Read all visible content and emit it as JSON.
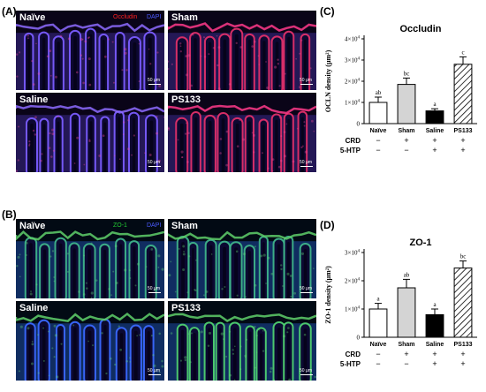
{
  "figure": {
    "panels": {
      "A": {
        "label": "(A)"
      },
      "B": {
        "label": "(B)"
      },
      "C": {
        "label": "(C)"
      },
      "D": {
        "label": "(D)"
      }
    },
    "micrographs_A": {
      "stain1": "Occludin",
      "stain2": "DAPI",
      "stain1_color": "#ff2020",
      "stain2_color": "#4b5bff",
      "images": [
        {
          "title": "Naïve",
          "scale": "50 μm"
        },
        {
          "title": "Sham",
          "scale": "50 μm"
        },
        {
          "title": "Saline",
          "scale": "50 μm"
        },
        {
          "title": "PS133",
          "scale": "50 μm"
        }
      ]
    },
    "micrographs_B": {
      "stain1": "ZO-1",
      "stain2": "DAPI",
      "stain1_color": "#22cc33",
      "stain2_color": "#4b5bff",
      "images": [
        {
          "title": "Naïve",
          "scale": "50 μm"
        },
        {
          "title": "Sham",
          "scale": "50 μm"
        },
        {
          "title": "Saline",
          "scale": "50 μm"
        },
        {
          "title": "PS133",
          "scale": "50 μm"
        }
      ]
    },
    "treatment_rows": {
      "row1": "CRD",
      "row2": "5-HTP",
      "crd": [
        "−",
        "+",
        "+",
        "+"
      ],
      "htp": [
        "−",
        "−",
        "+",
        "+"
      ]
    }
  },
  "chart_data": [
    {
      "type": "bar",
      "title": "Occludin",
      "ylabel": "OCLN density (μm²)",
      "categories": [
        "Naïve",
        "Sham",
        "Saline",
        "PS133"
      ],
      "values": [
        10000,
        18500,
        6000,
        28000
      ],
      "errors": [
        2500,
        3000,
        1000,
        3500
      ],
      "letters": [
        "ab",
        "bc",
        "a",
        "c"
      ],
      "fills": [
        "white",
        "lightgray",
        "black",
        "hatched"
      ],
      "ylim": [
        0,
        40000
      ],
      "ytick_mantissas": [
        "0",
        "1×10",
        "2×10",
        "3×10",
        "4×10"
      ],
      "ytick_exponents": [
        "",
        "4",
        "4",
        "4",
        "4"
      ],
      "ytick_values": [
        0,
        10000,
        20000,
        30000,
        40000
      ]
    },
    {
      "type": "bar",
      "title": "ZO-1",
      "ylabel": "ZO-1 density (μm²)",
      "categories": [
        "Naïve",
        "Sham",
        "Saline",
        "PS133"
      ],
      "values": [
        10000,
        17500,
        8000,
        24500
      ],
      "errors": [
        2000,
        3000,
        2000,
        2500
      ],
      "letters": [
        "a",
        "ab",
        "a",
        "bc"
      ],
      "fills": [
        "white",
        "lightgray",
        "black",
        "hatched"
      ],
      "ylim": [
        0,
        30000
      ],
      "ytick_mantissas": [
        "0",
        "1×10",
        "2×10",
        "3×10"
      ],
      "ytick_exponents": [
        "",
        "4",
        "4",
        "4"
      ],
      "ytick_values": [
        0,
        10000,
        20000,
        30000
      ]
    }
  ]
}
